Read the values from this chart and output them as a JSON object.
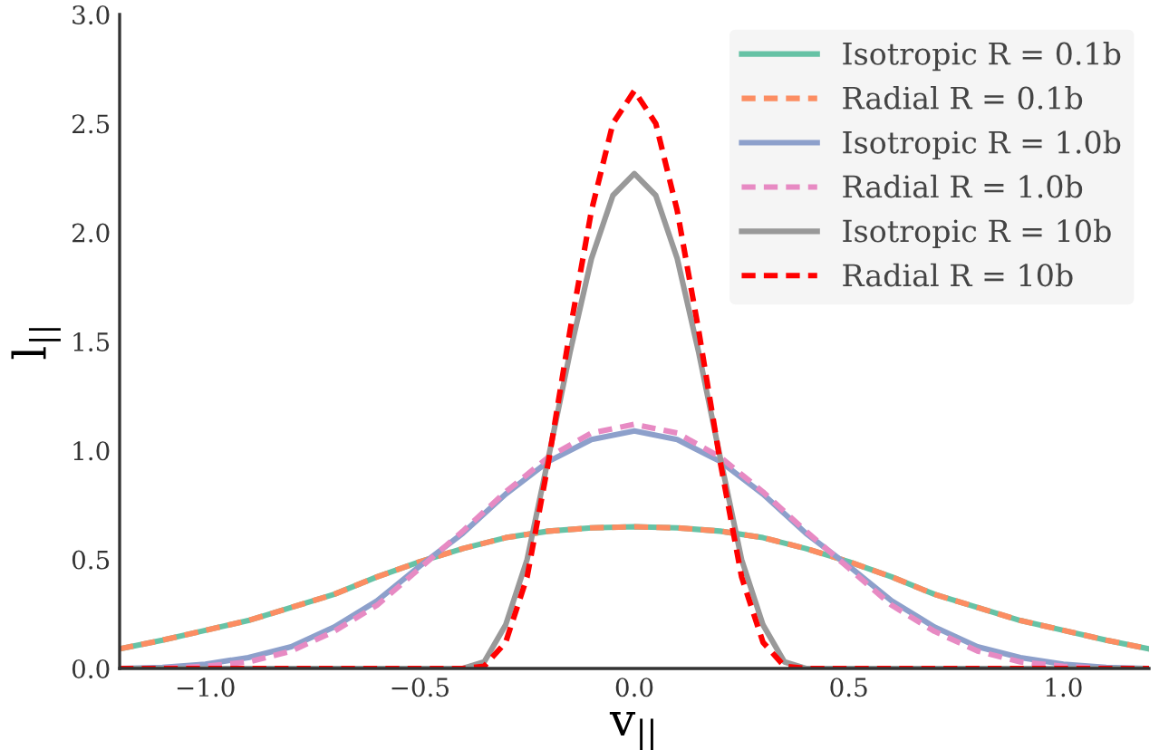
{
  "chart_data": {
    "type": "line",
    "xlabel": "v$_{||}$",
    "ylabel": "l$_{||}$",
    "xlim": [
      -1.2,
      1.2
    ],
    "ylim": [
      0,
      3.0
    ],
    "xticks": [
      {
        "value": -1.0,
        "label": "−1.0"
      },
      {
        "value": -0.5,
        "label": "−0.5"
      },
      {
        "value": 0.0,
        "label": "0.0"
      },
      {
        "value": 0.5,
        "label": "0.5"
      },
      {
        "value": 1.0,
        "label": "1.0"
      }
    ],
    "yticks": [
      {
        "value": 0,
        "label": "0.0"
      },
      0.5,
      {
        "value": 1,
        "label": "1.0"
      },
      1.5,
      {
        "value": 2,
        "label": "2.0"
      },
      2.5,
      {
        "value": 3,
        "label": "3.0"
      }
    ],
    "grid": false,
    "legend": "top right",
    "marker": "none",
    "series": [
      {
        "name": "Isotropic R = 0.1b",
        "color": "#66c2a5",
        "line_style": "solid",
        "x": [
          -1.2,
          -1.1,
          -1.0,
          -0.9,
          -0.8,
          -0.7,
          -0.6,
          -0.5,
          -0.4,
          -0.3,
          -0.2,
          -0.1,
          0,
          0.1,
          0.2,
          0.3,
          0.4,
          0.5,
          0.6,
          0.7,
          0.8,
          0.9,
          1.0,
          1.1,
          1.2
        ],
        "values": [
          0.09,
          0.13,
          0.175,
          0.22,
          0.28,
          0.34,
          0.42,
          0.49,
          0.55,
          0.6,
          0.63,
          0.645,
          0.65,
          0.645,
          0.63,
          0.6,
          0.55,
          0.49,
          0.42,
          0.34,
          0.28,
          0.22,
          0.175,
          0.13,
          0.09
        ]
      },
      {
        "name": "Radial R = 0.1b",
        "color": "#fc8d62",
        "line_style": "dashed",
        "x": [
          -1.2,
          -1.1,
          -1.0,
          -0.9,
          -0.8,
          -0.7,
          -0.6,
          -0.5,
          -0.4,
          -0.3,
          -0.2,
          -0.1,
          0,
          0.1,
          0.2,
          0.3,
          0.4,
          0.5,
          0.6,
          0.7,
          0.8,
          0.9,
          1.0,
          1.1,
          1.2
        ],
        "values": [
          0.09,
          0.13,
          0.175,
          0.22,
          0.28,
          0.34,
          0.42,
          0.49,
          0.55,
          0.6,
          0.63,
          0.645,
          0.65,
          0.645,
          0.63,
          0.6,
          0.55,
          0.49,
          0.42,
          0.34,
          0.28,
          0.22,
          0.175,
          0.13,
          0.09
        ]
      },
      {
        "name": "Isotropic R = 1.0b",
        "color": "#8da0cb",
        "line_style": "solid",
        "x": [
          -1.2,
          -1.1,
          -1.0,
          -0.9,
          -0.8,
          -0.7,
          -0.6,
          -0.5,
          -0.4,
          -0.3,
          -0.2,
          -0.1,
          0,
          0.1,
          0.2,
          0.3,
          0.4,
          0.5,
          0.6,
          0.7,
          0.8,
          0.9,
          1.0,
          1.1,
          1.2
        ],
        "values": [
          0,
          0.005,
          0.02,
          0.05,
          0.1,
          0.19,
          0.31,
          0.47,
          0.62,
          0.8,
          0.95,
          1.05,
          1.09,
          1.05,
          0.95,
          0.8,
          0.62,
          0.47,
          0.31,
          0.19,
          0.1,
          0.05,
          0.02,
          0.005,
          0
        ]
      },
      {
        "name": "Radial R = 1.0b",
        "color": "#e78ac3",
        "line_style": "dashed",
        "x": [
          -1.2,
          -1.1,
          -1.0,
          -0.9,
          -0.8,
          -0.7,
          -0.6,
          -0.5,
          -0.4,
          -0.3,
          -0.2,
          -0.1,
          0,
          0.1,
          0.2,
          0.3,
          0.4,
          0.5,
          0.6,
          0.7,
          0.8,
          0.9,
          1.0,
          1.1,
          1.2
        ],
        "values": [
          0,
          0,
          0.01,
          0.03,
          0.08,
          0.17,
          0.29,
          0.46,
          0.63,
          0.81,
          0.97,
          1.08,
          1.12,
          1.08,
          0.97,
          0.81,
          0.63,
          0.46,
          0.29,
          0.17,
          0.08,
          0.03,
          0.01,
          0,
          0
        ]
      },
      {
        "name": "Isotropic R = 10b",
        "color": "#999999",
        "line_style": "solid",
        "x": [
          -1.2,
          -0.4,
          -0.35,
          -0.3,
          -0.25,
          -0.2,
          -0.15,
          -0.1,
          -0.05,
          0,
          0.05,
          0.1,
          0.15,
          0.2,
          0.25,
          0.3,
          0.35,
          0.4,
          1.2
        ],
        "values": [
          0,
          0,
          0.03,
          0.2,
          0.5,
          0.97,
          1.45,
          1.88,
          2.17,
          2.27,
          2.17,
          1.88,
          1.45,
          0.97,
          0.5,
          0.2,
          0.03,
          0,
          0
        ]
      },
      {
        "name": "Radial R = 10b",
        "color": "#ff0000",
        "line_style": "dashed",
        "x": [
          -1.2,
          -0.4,
          -0.35,
          -0.3,
          -0.25,
          -0.2,
          -0.15,
          -0.1,
          -0.05,
          0,
          0.05,
          0.1,
          0.15,
          0.2,
          0.25,
          0.3,
          0.35,
          0.4,
          1.2
        ],
        "values": [
          0,
          0,
          0.01,
          0.12,
          0.42,
          0.95,
          1.55,
          2.1,
          2.5,
          2.65,
          2.5,
          2.1,
          1.55,
          0.95,
          0.42,
          0.12,
          0.01,
          0,
          0
        ]
      }
    ]
  }
}
